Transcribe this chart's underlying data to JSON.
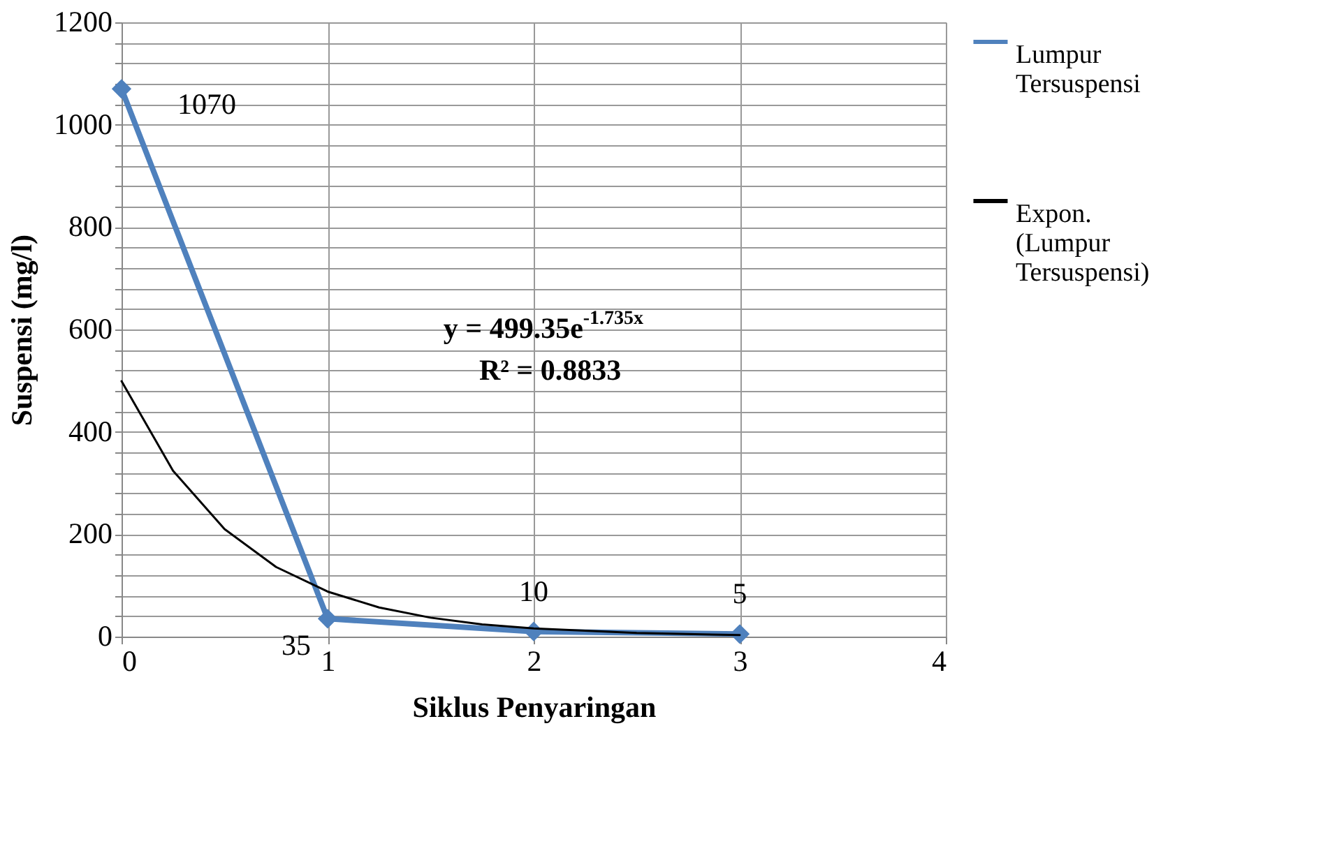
{
  "chart_data": {
    "type": "line",
    "xlabel": "Siklus Penyaringan",
    "ylabel": "Suspensi (mg/l)",
    "x": [
      0,
      1,
      2,
      3
    ],
    "series": [
      {
        "name": "Lumpur Tersuspensi",
        "color": "#4f81bd",
        "values": [
          1070,
          35,
          10,
          5
        ],
        "marker": "diamond",
        "data_labels": true
      },
      {
        "name": "Expon. (Lumpur Tersuspensi)",
        "color": "#000000",
        "type": "line",
        "marker": "none",
        "x": [
          0,
          0.25,
          0.5,
          0.75,
          1,
          1.25,
          1.5,
          1.75,
          2,
          2.5,
          3
        ],
        "values": [
          499,
          324,
          210,
          136,
          88,
          57,
          37,
          24,
          16,
          7,
          3
        ]
      }
    ],
    "xlim": [
      0,
      4
    ],
    "xticks": [
      0,
      1,
      2,
      3,
      4
    ],
    "ylim": [
      0,
      1200
    ],
    "yticks": [
      0,
      {
        "value": 40,
        "label": null
      },
      {
        "value": 80,
        "label": null
      },
      {
        "value": 120,
        "label": null
      },
      {
        "value": 160,
        "label": null
      },
      200,
      {
        "value": 240,
        "label": null
      },
      {
        "value": 280,
        "label": null
      },
      {
        "value": 320,
        "label": null
      },
      {
        "value": 360,
        "label": null
      },
      400,
      {
        "value": 440,
        "label": null
      },
      {
        "value": 480,
        "label": null
      },
      {
        "value": 520,
        "label": null
      },
      {
        "value": 560,
        "label": null
      },
      600,
      {
        "value": 640,
        "label": null
      },
      {
        "value": 680,
        "label": null
      },
      {
        "value": 720,
        "label": null
      },
      {
        "value": 760,
        "label": null
      },
      800,
      {
        "value": 840,
        "label": null
      },
      {
        "value": 880,
        "label": null
      },
      {
        "value": 920,
        "label": null
      },
      {
        "value": 960,
        "label": null
      },
      1000,
      {
        "value": 1040,
        "label": null
      },
      {
        "value": 1080,
        "label": null
      },
      {
        "value": 1120,
        "label": null
      },
      {
        "value": 1160,
        "label": null
      },
      1200
    ],
    "grid": true,
    "legend": "right",
    "annotations": [
      {
        "text": "y = 499.35e$^{-1.735x}$"
      },
      {
        "text": "R² = 0.8833"
      }
    ]
  }
}
